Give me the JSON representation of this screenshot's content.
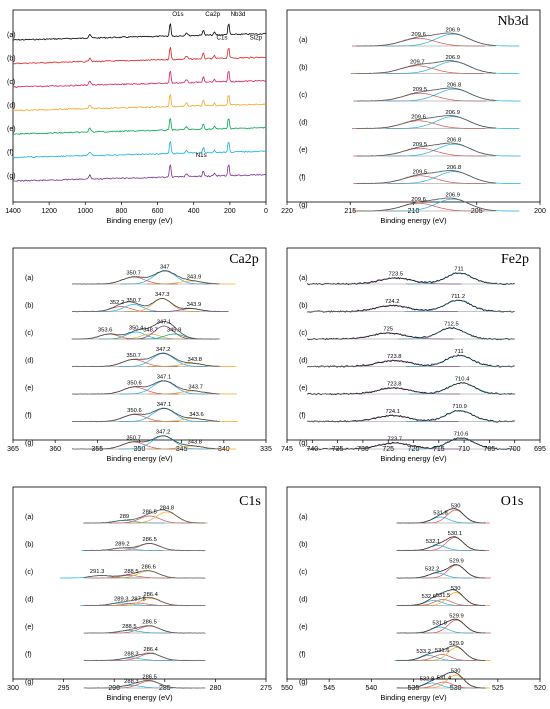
{
  "chart_data": [
    {
      "id": "survey",
      "type": "line",
      "title": "",
      "xlabel": "Binding energy (eV)",
      "ylabel": "",
      "xlim": [
        1400,
        0
      ],
      "x_reversed": true,
      "xticks": [
        1400,
        1200,
        1000,
        800,
        600,
        400,
        200,
        0
      ],
      "y_ticks_shown": false,
      "samples": [
        "(a)",
        "(b)",
        "(c)",
        "(d)",
        "(e)",
        "(f)",
        "(g)"
      ],
      "series_colors": [
        "#000000",
        "#e02020",
        "#d81b60",
        "#f5a623",
        "#00a651",
        "#1ab0e6",
        "#7b2f8e"
      ],
      "peaks_eV": [
        975,
        530,
        440,
        400,
        350,
        285,
        207
      ],
      "annotations": [
        {
          "text": "O1s",
          "x": 530,
          "row": 0
        },
        {
          "text": "Ca2p",
          "x": 347,
          "row": 0
        },
        {
          "text": "Nb3d",
          "x": 207,
          "row": 0
        },
        {
          "text": "C1s",
          "x": 285,
          "row": 1
        },
        {
          "text": "Si2p",
          "x": 102,
          "row": 1
        },
        {
          "text": "N1s",
          "x": 400,
          "row": 6
        }
      ]
    },
    {
      "id": "nb3d",
      "type": "line",
      "title": "Nb3d",
      "xlabel": "Binding energy (eV)",
      "ylabel": "",
      "xlim": [
        220,
        200
      ],
      "x_reversed": true,
      "xticks": [
        220,
        215,
        210,
        205,
        200
      ],
      "samples": [
        "(a)",
        "(b)",
        "(c)",
        "(d)",
        "(e)",
        "(f)",
        "(g)"
      ],
      "component_colors": [
        "#d9534f",
        "#1ab0e6"
      ],
      "component_widths": [
        1.3,
        1.3
      ],
      "component_amps": [
        0.55,
        0.85
      ],
      "peaks": [
        [
          209.6,
          206.9
        ],
        [
          209.7,
          206.9
        ],
        [
          209.5,
          206.8
        ],
        [
          209.6,
          206.9
        ],
        [
          209.5,
          206.8
        ],
        [
          209.5,
          206.8
        ],
        [
          209.6,
          206.9
        ]
      ]
    },
    {
      "id": "ca2p",
      "type": "line",
      "title": "Ca2p",
      "xlabel": "Binding energy (eV)",
      "ylabel": "",
      "xlim": [
        365,
        335
      ],
      "x_reversed": true,
      "xticks": [
        365,
        360,
        355,
        350,
        345,
        340,
        335
      ],
      "samples": [
        "(a)",
        "(b)",
        "(c)",
        "(d)",
        "(e)",
        "(f)",
        "(g)"
      ],
      "component_colors": [
        "#d9534f",
        "#1ab0e6",
        "#f5a623",
        "#7b2f8e",
        "#00a651"
      ],
      "peaks": [
        [
          "350.7",
          "347",
          "343.9"
        ],
        [
          "352.2",
          "350.7",
          "347.3",
          "343.9"
        ],
        [
          "353.6",
          "350.4",
          "348.7",
          "347.1",
          "345.9"
        ],
        [
          "350.7",
          "347.2",
          "343.8"
        ],
        [
          "350.6",
          "347.1",
          "343.7"
        ],
        [
          "350.6",
          "347.1",
          "343.6"
        ],
        [
          "350.7",
          "347.2",
          "343.8"
        ]
      ]
    },
    {
      "id": "fe2p",
      "type": "line",
      "title": "Fe2p",
      "xlabel": "Binding energy (eV)",
      "ylabel": "",
      "xlim": [
        745,
        695
      ],
      "x_reversed": true,
      "xticks": [
        745,
        740,
        735,
        730,
        725,
        720,
        715,
        710,
        705,
        700,
        695
      ],
      "samples": [
        "(a)",
        "(b)",
        "(c)",
        "(d)",
        "(e)",
        "(f)",
        "(g)"
      ],
      "component_colors": [
        "#7b2f8e",
        "#1ab0e6",
        "#d9534f",
        "#00a651",
        "#f5a623"
      ],
      "peaks": [
        [
          "723.5",
          "711"
        ],
        [
          "724.2",
          "711.2"
        ],
        [
          "725",
          "712.5"
        ],
        [
          "723.8",
          "711"
        ],
        [
          "723.8",
          "710.4"
        ],
        [
          "724.1",
          "710.9"
        ],
        [
          "723.7",
          "710.6"
        ]
      ]
    },
    {
      "id": "c1s",
      "type": "line",
      "title": "C1s",
      "xlabel": "Binding energy (eV)",
      "ylabel": "",
      "xlim": [
        300,
        275
      ],
      "x_reversed": true,
      "xticks": [
        300,
        295,
        290,
        285,
        280,
        275
      ],
      "samples": [
        "(a)",
        "(b)",
        "(c)",
        "(d)",
        "(e)",
        "(f)",
        "(g)"
      ],
      "component_colors": [
        "#1ab0e6",
        "#d9534f",
        "#f5a623",
        "#7b2f8e"
      ],
      "peaks": [
        [
          "289",
          "286.5",
          "284.8"
        ],
        [
          "289.2",
          "286.5"
        ],
        [
          "291.3",
          "288.5",
          "286.6"
        ],
        [
          "289.3",
          "287.8",
          "286.4"
        ],
        [
          "288.5",
          "286.5"
        ],
        [
          "288.3",
          "286.4"
        ],
        [
          "288.3",
          "286.5"
        ]
      ]
    },
    {
      "id": "o1s",
      "type": "line",
      "title": "O1s",
      "xlabel": "Binding energy (eV)",
      "ylabel": "",
      "xlim": [
        550,
        520
      ],
      "x_reversed": true,
      "xticks": [
        550,
        545,
        540,
        535,
        530,
        525,
        520
      ],
      "samples": [
        "(a)",
        "(b)",
        "(c)",
        "(d)",
        "(e)",
        "(f)",
        "(g)"
      ],
      "component_colors": [
        "#1ab0e6",
        "#d9534f",
        "#f5a623",
        "#7b2f8e"
      ],
      "peaks": [
        [
          "531.8",
          "530"
        ],
        [
          "532.1",
          "530.1"
        ],
        [
          "532.2",
          "529.9"
        ],
        [
          "532.6",
          "531.5",
          "530"
        ],
        [
          "531.9",
          "529.9"
        ],
        [
          "533.2",
          "531.6",
          "529.9"
        ],
        [
          "532.8",
          "531.4",
          "530"
        ]
      ]
    }
  ]
}
